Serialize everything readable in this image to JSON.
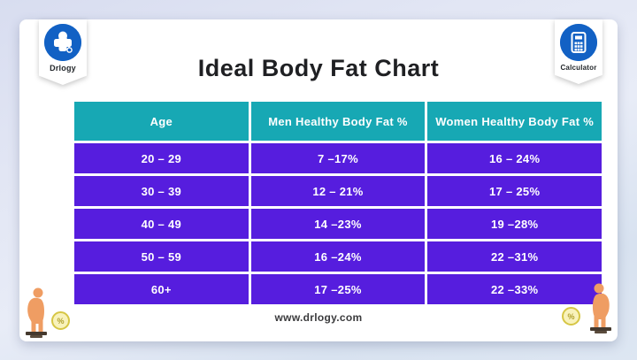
{
  "page": {
    "title": "Ideal Body Fat Chart",
    "footer_url": "www.drlogy.com"
  },
  "badges": {
    "left": {
      "label": "Drlogy",
      "icon": "drlogy-medical-cross-icon"
    },
    "right": {
      "label": "Calculator",
      "icon": "calculator-icon"
    }
  },
  "corner_markers": {
    "symbol": "%"
  },
  "colors": {
    "header_teal": "#17a8b4",
    "row_purple": "#561dde",
    "badge_blue": "#1261c4",
    "figure_orange": "#ef9d63",
    "card_white": "#ffffff"
  },
  "chart_data": {
    "type": "table",
    "title": "Ideal Body Fat Chart",
    "columns": [
      "Age",
      "Men Healthy Body Fat %",
      "Women Healthy Body Fat %"
    ],
    "rows": [
      [
        "20 – 29",
        "7 –17%",
        "16 – 24%"
      ],
      [
        "30 – 39",
        "12 – 21%",
        "17 – 25%"
      ],
      [
        "40 – 49",
        "14 –23%",
        "19 –28%"
      ],
      [
        "50 – 59",
        "16 –24%",
        "22 –31%"
      ],
      [
        "60+",
        "17 –25%",
        "22 –33%"
      ]
    ]
  }
}
